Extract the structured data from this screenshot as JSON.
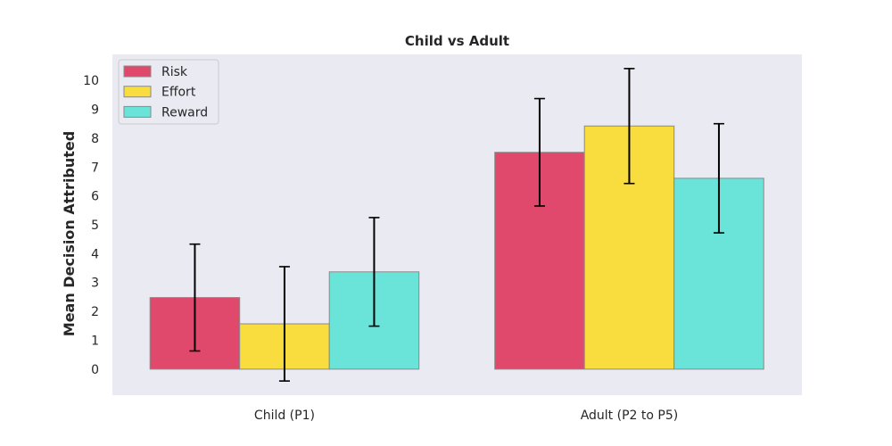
{
  "chart_data": {
    "type": "bar",
    "title": "Child vs Adult",
    "xlabel": "",
    "ylabel": "Mean Decision Attributed",
    "categories": [
      "Child (P1)",
      "Adult (P2 to P5)"
    ],
    "series": [
      {
        "name": "Risk",
        "color": "#e0496b",
        "values": [
          2.48,
          7.51
        ],
        "errors": [
          1.85,
          1.86
        ]
      },
      {
        "name": "Effort",
        "color": "#f9dc3d",
        "values": [
          1.57,
          8.42
        ],
        "errors": [
          1.98,
          1.99
        ]
      },
      {
        "name": "Reward",
        "color": "#6ae3d9",
        "values": [
          3.37,
          6.61
        ],
        "errors": [
          1.88,
          1.89
        ]
      }
    ],
    "yticks": [
      0,
      1,
      2,
      3,
      4,
      5,
      6,
      7,
      8,
      9,
      10
    ],
    "ylim": [
      -0.9,
      10.9
    ],
    "grid": false,
    "legend_position": "top-left",
    "background": "#eaeaf2"
  }
}
